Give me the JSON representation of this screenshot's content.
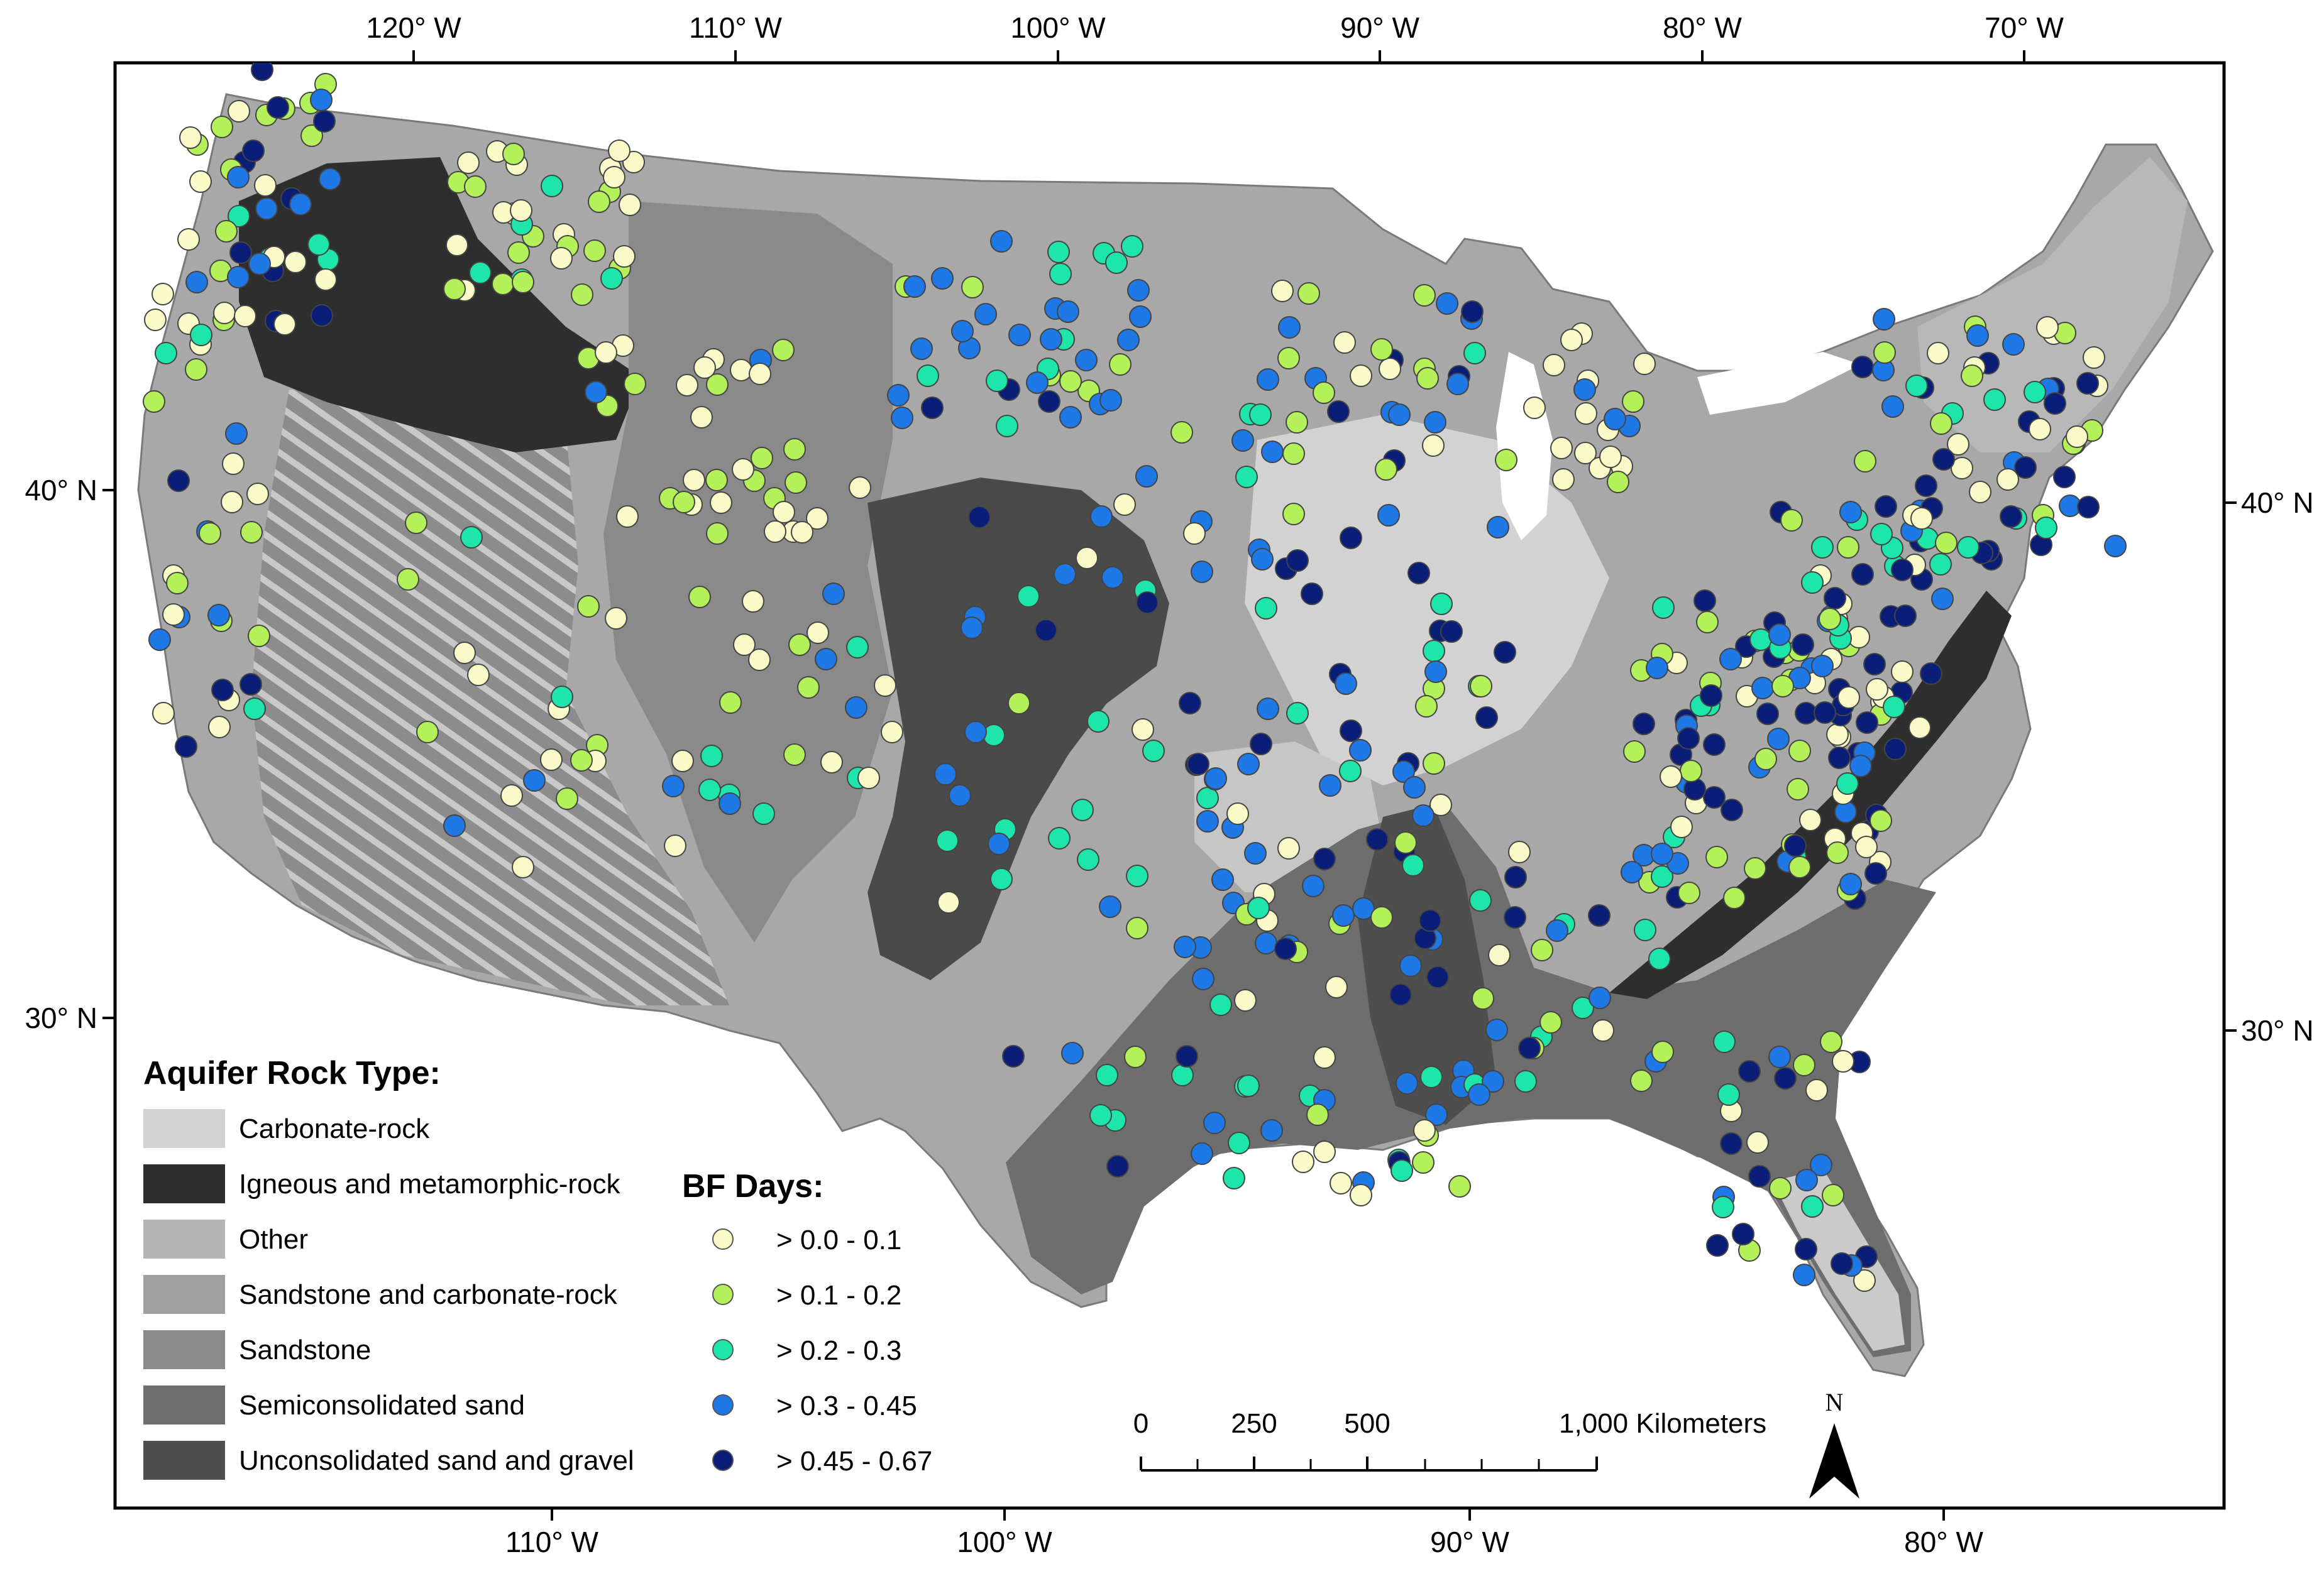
{
  "axes": {
    "top_ticks": [
      "120° W",
      "110° W",
      "100° W",
      "90° W",
      "80° W",
      "70° W"
    ],
    "bottom_ticks": [
      "110° W",
      "100° W",
      "90° W",
      "80° W"
    ],
    "left_ticks": [
      "40° N",
      "30° N"
    ],
    "right_ticks": [
      "40° N",
      "30° N"
    ]
  },
  "legend_rock": {
    "title": "Aquifer Rock Type:",
    "items": [
      {
        "label": "Carbonate-rock",
        "color": "#d2d2d2"
      },
      {
        "label": "Igneous and metamorphic-rock",
        "color": "#2e2e2e"
      },
      {
        "label": "Other",
        "color": "#b4b4b4"
      },
      {
        "label": "Sandstone and carbonate-rock",
        "color": "#a0a0a0"
      },
      {
        "label": "Sandstone",
        "color": "#8a8a8a"
      },
      {
        "label": "Semiconsolidated sand",
        "color": "#6e6e6e"
      },
      {
        "label": "Unconsolidated sand and gravel",
        "color": "#4e4e4e"
      }
    ]
  },
  "legend_bf": {
    "title": "BF Days:",
    "items": [
      {
        "label": "> 0.0 - 0.1",
        "color": "#fafac8"
      },
      {
        "label": "> 0.1 - 0.2",
        "color": "#b4f05a"
      },
      {
        "label": "> 0.2 - 0.3",
        "color": "#1ee6aa"
      },
      {
        "label": "> 0.3 - 0.45",
        "color": "#1e78e6"
      },
      {
        "label": "> 0.45 - 0.67",
        "color": "#0a1e78"
      }
    ]
  },
  "scale_bar": {
    "labels": [
      "0",
      "250",
      "500",
      "1,000 Kilometers"
    ]
  },
  "north_arrow": {
    "label": "N"
  }
}
